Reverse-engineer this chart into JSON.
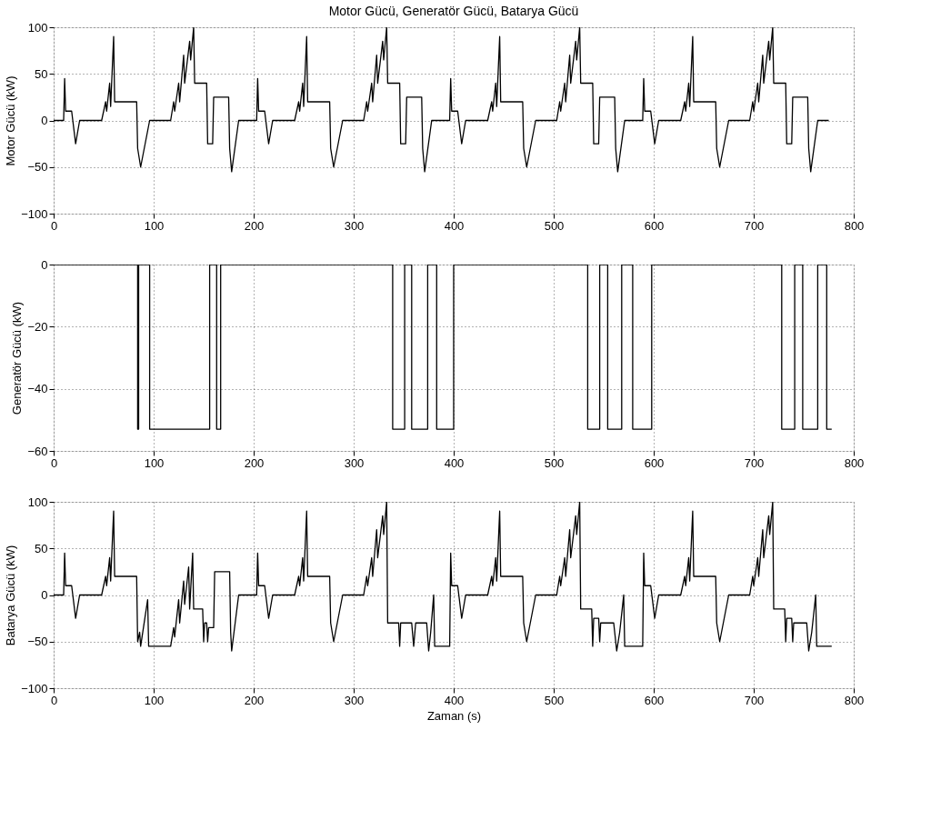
{
  "chart_data": [
    {
      "type": "line",
      "title": "Motor Gücü, Generatör Gücü, Batarya Gücü",
      "ylabel": "Motor Gücü (kW)",
      "xlim": [
        0,
        800
      ],
      "xticks": [
        0,
        100,
        200,
        300,
        400,
        500,
        600,
        700,
        800
      ],
      "ylim": [
        -100,
        100
      ],
      "yticks": [
        -100,
        -50,
        0,
        50,
        100
      ],
      "grid": true,
      "line_style": "solid",
      "series": [
        {
          "color": "#000000",
          "x": [
            0,
            10,
            11,
            12,
            18,
            22,
            26,
            48,
            52,
            53,
            56,
            57,
            60,
            61,
            83,
            84,
            87,
            96,
            117,
            120,
            121,
            125,
            126,
            130,
            131,
            136,
            137,
            140,
            141,
            153,
            154,
            159,
            160,
            175,
            176,
            178,
            185,
            193,
            203,
            204,
            205,
            211,
            215,
            219,
            241,
            245,
            246,
            249,
            250,
            253,
            254,
            276,
            277,
            280,
            289,
            310,
            313,
            314,
            318,
            319,
            323,
            324,
            329,
            330,
            333,
            334,
            346,
            347,
            352,
            353,
            368,
            369,
            371,
            378,
            386,
            396,
            397,
            398,
            404,
            408,
            412,
            434,
            438,
            439,
            442,
            443,
            446,
            447,
            469,
            470,
            473,
            482,
            503,
            506,
            507,
            511,
            512,
            516,
            517,
            522,
            523,
            526,
            527,
            539,
            540,
            545,
            546,
            561,
            562,
            564,
            571,
            579,
            589,
            590,
            591,
            597,
            601,
            605,
            627,
            631,
            632,
            635,
            636,
            639,
            640,
            662,
            663,
            666,
            675,
            696,
            699,
            700,
            704,
            705,
            709,
            710,
            715,
            716,
            719,
            720,
            732,
            733,
            738,
            739,
            754,
            755,
            757,
            764,
            775
          ],
          "values": [
            0,
            0,
            45,
            10,
            10,
            -25,
            0,
            0,
            20,
            10,
            40,
            15,
            90,
            20,
            20,
            -30,
            -50,
            0,
            0,
            20,
            10,
            40,
            20,
            70,
            40,
            85,
            65,
            100,
            40,
            40,
            -25,
            -25,
            25,
            25,
            -30,
            -55,
            0,
            0,
            0,
            45,
            10,
            10,
            -25,
            0,
            0,
            20,
            10,
            40,
            15,
            90,
            20,
            20,
            -30,
            -50,
            0,
            0,
            20,
            10,
            40,
            20,
            70,
            40,
            85,
            65,
            100,
            40,
            40,
            -25,
            -25,
            25,
            25,
            -30,
            -55,
            0,
            0,
            0,
            45,
            10,
            10,
            -25,
            0,
            0,
            20,
            10,
            40,
            15,
            90,
            20,
            20,
            -30,
            -50,
            0,
            0,
            20,
            10,
            40,
            20,
            70,
            40,
            85,
            65,
            100,
            40,
            40,
            -25,
            -25,
            25,
            25,
            -30,
            -55,
            0,
            0,
            0,
            45,
            10,
            10,
            -25,
            0,
            0,
            20,
            10,
            40,
            15,
            90,
            20,
            20,
            -30,
            -50,
            0,
            0,
            20,
            10,
            40,
            20,
            70,
            40,
            85,
            65,
            100,
            40,
            40,
            -25,
            -25,
            25,
            25,
            -30,
            -55,
            0,
            0
          ]
        }
      ]
    },
    {
      "type": "line",
      "ylabel": "Generatör Gücü (kW)",
      "xlim": [
        0,
        800
      ],
      "xticks": [
        0,
        100,
        200,
        300,
        400,
        500,
        600,
        700,
        800
      ],
      "ylim": [
        -60,
        0
      ],
      "yticks": [
        -60,
        -40,
        -20,
        0
      ],
      "grid": true,
      "line_style": "solid",
      "series": [
        {
          "color": "#000000",
          "x": [
            0,
            84,
            84,
            85,
            85,
            96,
            96,
            156,
            156,
            163,
            163,
            167,
            167,
            339,
            339,
            351,
            351,
            358,
            358,
            374,
            374,
            383,
            383,
            400,
            400,
            534,
            534,
            546,
            546,
            554,
            554,
            568,
            568,
            579,
            579,
            598,
            598,
            728,
            728,
            741,
            741,
            749,
            749,
            764,
            764,
            773,
            773,
            778
          ],
          "values": [
            0,
            0,
            -53,
            -53,
            0,
            0,
            -53,
            -53,
            0,
            0,
            -53,
            -53,
            0,
            0,
            -53,
            -53,
            0,
            0,
            -53,
            -53,
            0,
            0,
            -53,
            -53,
            0,
            0,
            -53,
            -53,
            0,
            0,
            -53,
            -53,
            0,
            0,
            -53,
            -53,
            0,
            0,
            -53,
            -53,
            0,
            0,
            -53,
            -53,
            0,
            0,
            -53,
            -53
          ]
        }
      ]
    },
    {
      "type": "line",
      "ylabel": "Batarya Gücü (kW)",
      "xlabel": "Zaman (s)",
      "xlim": [
        0,
        800
      ],
      "xticks": [
        0,
        100,
        200,
        300,
        400,
        500,
        600,
        700,
        800
      ],
      "ylim": [
        -100,
        100
      ],
      "yticks": [
        -100,
        -50,
        0,
        50,
        100
      ],
      "grid": true,
      "line_style": "solid",
      "series": [
        {
          "color": "#000000",
          "x": [
            0,
            10,
            11,
            12,
            18,
            22,
            26,
            48,
            52,
            53,
            56,
            57,
            60,
            61,
            83,
            84,
            86,
            87,
            94,
            95,
            117,
            120,
            121,
            125,
            126,
            130,
            131,
            135,
            136,
            139,
            140,
            149,
            150,
            151,
            153,
            154,
            155,
            160,
            161,
            176,
            177,
            178,
            185,
            203,
            204,
            205,
            211,
            215,
            219,
            241,
            245,
            246,
            249,
            250,
            253,
            254,
            276,
            277,
            280,
            289,
            310,
            313,
            314,
            318,
            319,
            323,
            324,
            329,
            330,
            333,
            334,
            345,
            346,
            347,
            352,
            358,
            360,
            362,
            373,
            375,
            377,
            380,
            381,
            396,
            397,
            398,
            404,
            408,
            412,
            434,
            438,
            439,
            442,
            443,
            446,
            447,
            469,
            470,
            473,
            482,
            503,
            506,
            507,
            511,
            512,
            516,
            517,
            522,
            523,
            526,
            527,
            538,
            539,
            540,
            545,
            546,
            547,
            560,
            563,
            566,
            570,
            571,
            589,
            590,
            591,
            597,
            601,
            605,
            627,
            631,
            632,
            635,
            636,
            639,
            640,
            662,
            663,
            666,
            675,
            696,
            699,
            700,
            704,
            705,
            709,
            710,
            715,
            716,
            719,
            720,
            731,
            732,
            733,
            738,
            739,
            740,
            753,
            755,
            758,
            762,
            763,
            778
          ],
          "values": [
            0,
            0,
            45,
            10,
            10,
            -25,
            0,
            0,
            20,
            10,
            40,
            15,
            90,
            20,
            20,
            -50,
            -40,
            -55,
            -5,
            -55,
            -55,
            -35,
            -45,
            -5,
            -30,
            15,
            -10,
            30,
            -15,
            45,
            -15,
            -15,
            -50,
            -30,
            -30,
            -50,
            -35,
            -35,
            25,
            25,
            -40,
            -60,
            0,
            0,
            45,
            10,
            10,
            -25,
            0,
            0,
            20,
            10,
            40,
            15,
            90,
            20,
            20,
            -30,
            -50,
            0,
            0,
            20,
            10,
            40,
            20,
            70,
            40,
            85,
            65,
            100,
            -30,
            -30,
            -55,
            -30,
            -30,
            -30,
            -55,
            -30,
            -30,
            -60,
            -40,
            0,
            -55,
            -55,
            45,
            10,
            10,
            -25,
            0,
            0,
            20,
            10,
            40,
            15,
            90,
            20,
            20,
            -30,
            -50,
            0,
            0,
            20,
            10,
            40,
            20,
            70,
            40,
            85,
            65,
            100,
            -15,
            -15,
            -55,
            -25,
            -25,
            -50,
            -30,
            -30,
            -60,
            -40,
            0,
            -55,
            -55,
            45,
            10,
            10,
            -25,
            0,
            0,
            20,
            10,
            40,
            15,
            90,
            20,
            20,
            -30,
            -50,
            0,
            0,
            20,
            10,
            40,
            20,
            70,
            40,
            85,
            65,
            100,
            -15,
            -15,
            -50,
            -25,
            -25,
            -50,
            -30,
            -30,
            -60,
            -40,
            0,
            -55,
            -55
          ]
        }
      ]
    }
  ]
}
